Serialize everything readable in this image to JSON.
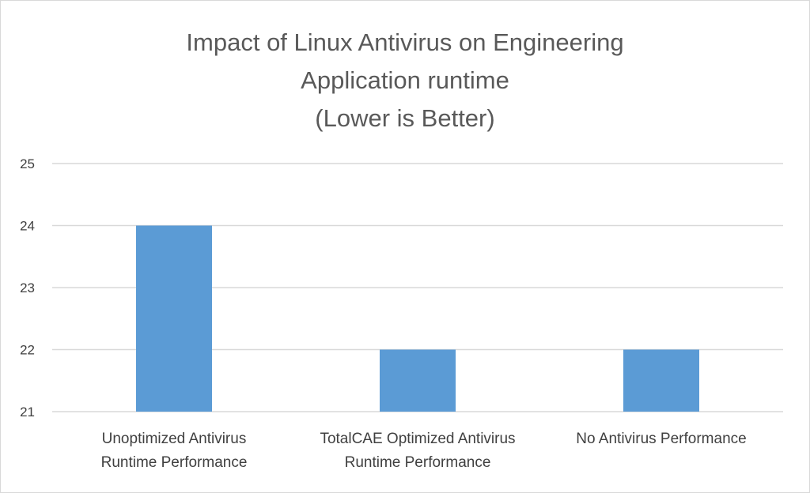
{
  "chart_data": {
    "type": "bar",
    "title_lines": [
      "Impact of Linux Antivirus on Engineering",
      "Application runtime",
      "(Lower is Better)"
    ],
    "categories": [
      [
        "Unoptimized Antivirus",
        "Runtime Performance"
      ],
      [
        "TotalCAE Optimized Antivirus",
        "Runtime Performance"
      ],
      [
        "No Antivirus Performance"
      ]
    ],
    "values": [
      24,
      22,
      22
    ],
    "ylim": [
      21,
      25
    ],
    "yticks": [
      "21",
      "22",
      "23",
      "24",
      "25"
    ],
    "grid": true,
    "bar_color": "#5b9bd5",
    "grid_color": "#d9d9d9",
    "xlabel": "",
    "ylabel": ""
  }
}
